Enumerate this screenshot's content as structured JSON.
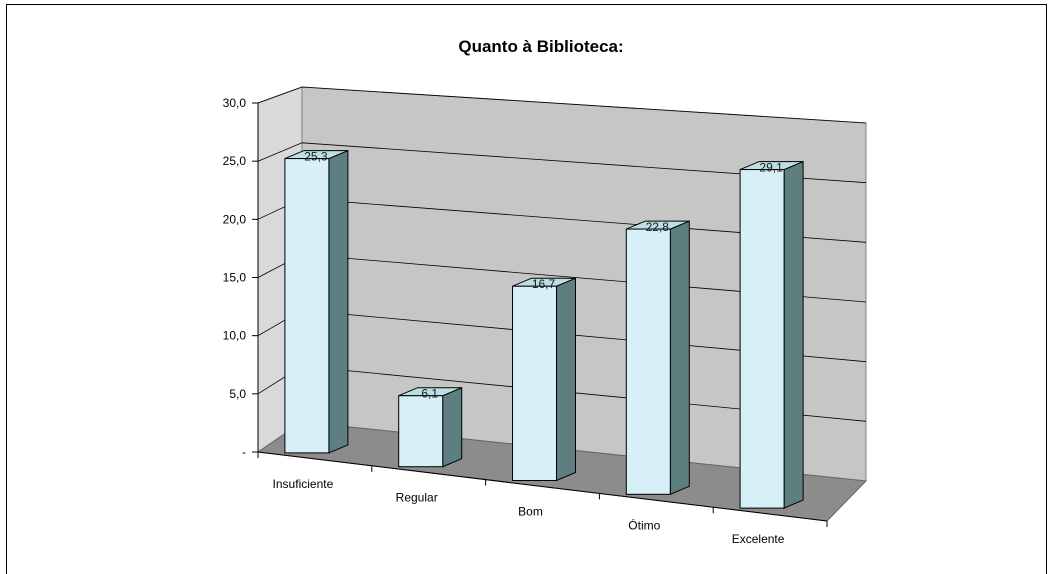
{
  "chart_data": {
    "type": "bar",
    "title": "Quanto à Biblioteca:",
    "categories": [
      "Insuficiente",
      "Regular",
      "Bom",
      "Ótimo",
      "Excelente"
    ],
    "values": [
      25.3,
      6.1,
      16.7,
      22.8,
      29.1
    ],
    "value_labels": [
      "25,3",
      "6,1",
      "16,7",
      "22,8",
      "29,1"
    ],
    "ylim": [
      0,
      30
    ],
    "yticks": [
      0,
      5,
      10,
      15,
      20,
      25,
      30
    ],
    "ytick_labels": [
      "-",
      "5,0",
      "10,0",
      "15,0",
      "20,0",
      "25,0",
      "30,0"
    ],
    "xlabel": "",
    "ylabel": "",
    "grid": true,
    "style": "3d-column",
    "colors": {
      "bar_front": "#d7f0f7",
      "bar_side": "#5e7f80",
      "bar_top": "#bcdfe6",
      "back_wall": "#c6c6c6",
      "side_wall": "#d9d9d9",
      "floor": "#8c8c8c",
      "gridline": "#000000"
    }
  }
}
